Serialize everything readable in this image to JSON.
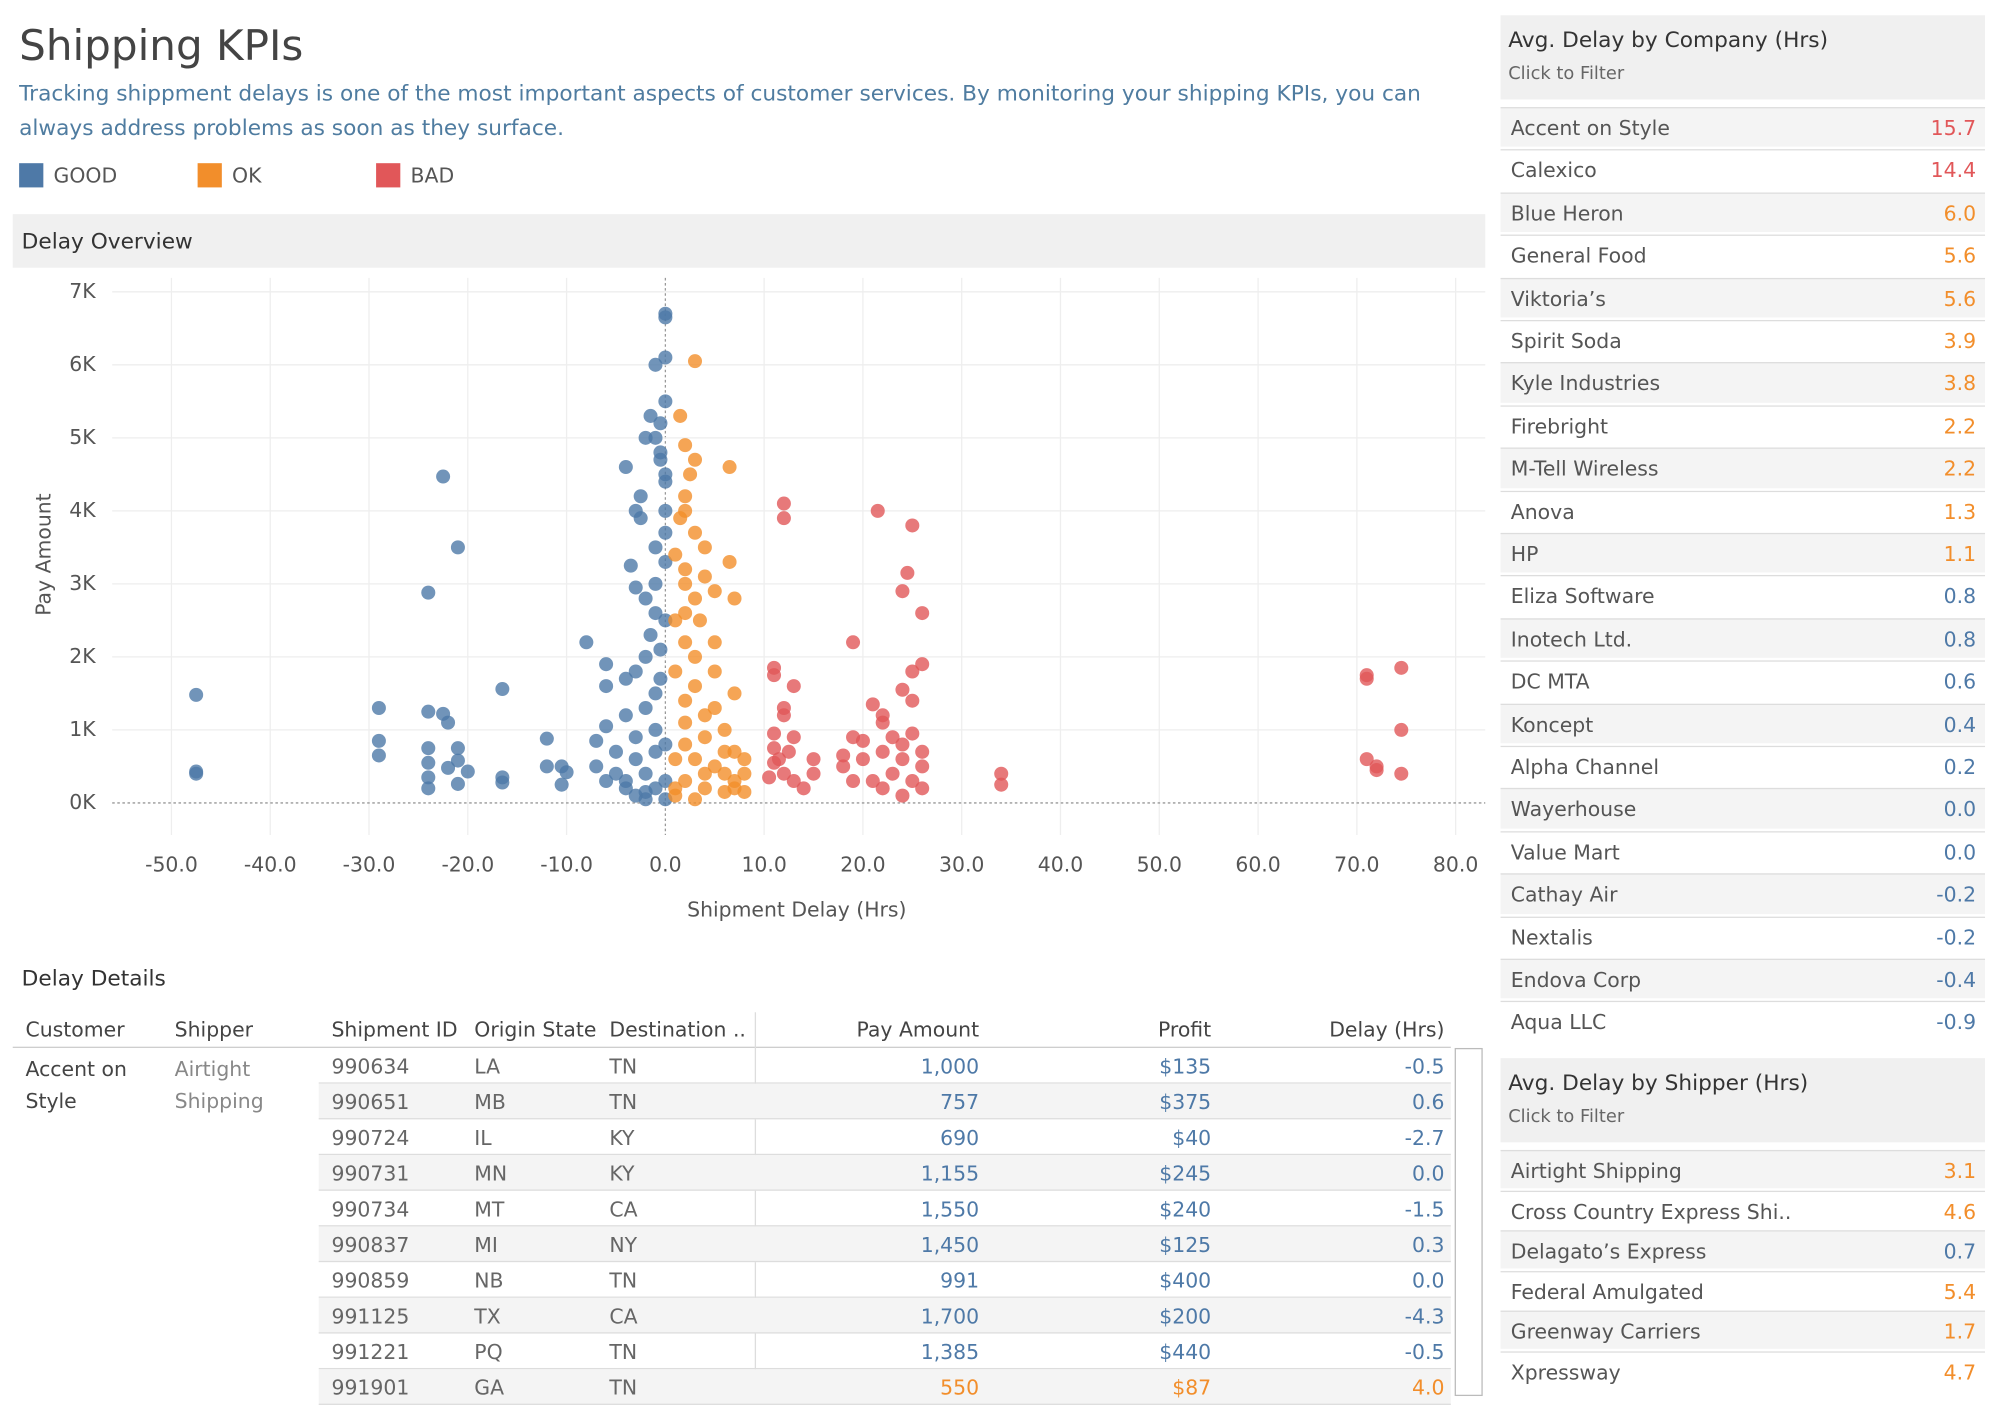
{
  "header": {
    "title": "Shipping KPIs",
    "subtitle": "Tracking shippment delays is one of the most important aspects of customer services. By monitoring your shipping KPIs, you can always address problems as soon as they surface."
  },
  "chart_data": {
    "type": "scatter",
    "title": "Delay Overview",
    "x_label": "Shipment Delay (Hrs)",
    "y_label": "Pay Amount",
    "xlim": [
      -56,
      83
    ],
    "ylim": [
      -440,
      7190
    ],
    "xticks": [
      {
        "value": -50,
        "label": "-50.0"
      },
      {
        "value": -40,
        "label": "-40.0"
      },
      {
        "value": -30,
        "label": "-30.0"
      },
      {
        "value": -20,
        "label": "-20.0"
      },
      {
        "value": -10,
        "label": "-10.0"
      },
      {
        "value": 0,
        "label": "0.0"
      },
      {
        "value": 10,
        "label": "10.0"
      },
      {
        "value": 20,
        "label": "20.0"
      },
      {
        "value": 30,
        "label": "30.0"
      },
      {
        "value": 40,
        "label": "40.0"
      },
      {
        "value": 50,
        "label": "50.0"
      },
      {
        "value": 60,
        "label": "60.0"
      },
      {
        "value": 70,
        "label": "70.0"
      },
      {
        "value": 80,
        "label": "80.0"
      }
    ],
    "yticks": [
      {
        "value": 0,
        "label": "0K"
      },
      {
        "value": 1000,
        "label": "1K"
      },
      {
        "value": 2000,
        "label": "2K"
      },
      {
        "value": 3000,
        "label": "3K"
      },
      {
        "value": 4000,
        "label": "4K"
      },
      {
        "value": 5000,
        "label": "5K"
      },
      {
        "value": 6000,
        "label": "6K"
      },
      {
        "value": 7000,
        "label": "7K"
      }
    ],
    "grid": true,
    "series": [
      {
        "name": "GOOD",
        "color": "#4e79a7",
        "x": [
          -47.5,
          -47.5,
          -47.5,
          -29,
          -29,
          -29,
          -24,
          -22.5,
          -21,
          -24,
          -22.5,
          -22,
          -24,
          -24,
          -24,
          -24,
          -22,
          -21,
          -21,
          -20,
          -21,
          -16.5,
          -16.5,
          -16.5,
          -12,
          -12,
          -10.5,
          -10.5,
          -10,
          -8,
          -7,
          -7,
          -6,
          -6,
          -5,
          -6,
          -4,
          -3.5,
          -3,
          -3,
          -2.5,
          -2.5,
          -2,
          -1.5,
          -1.5,
          -1,
          0,
          0,
          0,
          0,
          -0.5,
          -1,
          -0.5,
          0,
          0,
          0,
          -1,
          -1,
          -2,
          -1,
          -2,
          -0.5,
          -4,
          -3,
          -1,
          -4,
          -2,
          -3,
          -1,
          -5,
          -3,
          -1,
          -4,
          -2,
          -1,
          -3,
          -2,
          0,
          0,
          0,
          -0.5,
          0,
          0,
          -4,
          -6,
          -2,
          0,
          -0.5
        ],
        "values": [
          1480,
          430,
          400,
          1300,
          850,
          650,
          2880,
          4470,
          3500,
          1250,
          1220,
          1100,
          750,
          550,
          350,
          200,
          480,
          750,
          580,
          430,
          260,
          1560,
          350,
          280,
          880,
          500,
          500,
          250,
          420,
          2200,
          850,
          500,
          1600,
          1050,
          400,
          1900,
          4600,
          3250,
          2950,
          4000,
          4200,
          3900,
          5000,
          2300,
          5300,
          6000,
          6700,
          6650,
          6100,
          5500,
          5200,
          5000,
          4700,
          4400,
          4000,
          3700,
          3500,
          3000,
          2800,
          2600,
          2000,
          2100,
          1700,
          1800,
          1500,
          1200,
          1300,
          900,
          1000,
          700,
          600,
          700,
          300,
          400,
          200,
          100,
          50,
          50,
          300,
          800,
          1700,
          2500,
          3300,
          200,
          300,
          150,
          4500,
          4800
        ]
      },
      {
        "name": "OK",
        "color": "#f28e2b",
        "x": [
          3,
          6.5,
          1.5,
          2,
          2.5,
          3,
          2,
          1.5,
          3,
          6.5,
          2,
          4,
          5,
          7,
          2,
          3.5,
          5,
          3,
          5,
          7,
          2,
          4,
          6,
          7,
          2,
          3,
          5,
          7,
          2,
          4,
          1,
          3,
          6,
          1,
          1,
          1,
          2,
          8,
          8,
          6,
          4,
          2,
          5,
          3,
          1,
          1,
          4,
          6,
          7,
          8,
          2,
          3,
          4,
          2
        ],
        "values": [
          6050,
          4600,
          5300,
          4900,
          4500,
          4700,
          4200,
          3900,
          3700,
          3300,
          3000,
          3100,
          2900,
          2800,
          2600,
          2500,
          2200,
          2000,
          1800,
          1500,
          1400,
          1200,
          1000,
          700,
          800,
          600,
          500,
          300,
          300,
          200,
          100,
          50,
          150,
          1800,
          2500,
          3400,
          4000,
          600,
          400,
          700,
          900,
          1100,
          1300,
          1600,
          600,
          200,
          400,
          400,
          200,
          150,
          2200,
          2800,
          3500,
          3200
        ]
      },
      {
        "name": "BAD",
        "color": "#e15759",
        "x": [
          12,
          12,
          21.5,
          25,
          24.5,
          24,
          26,
          19,
          26,
          25,
          11,
          11,
          13,
          12,
          12,
          24,
          25,
          21,
          22,
          22,
          11,
          13,
          11,
          19,
          20,
          23,
          24,
          25,
          26,
          18,
          18,
          20,
          22,
          24,
          26,
          11,
          12,
          13,
          15,
          15,
          14,
          19,
          21,
          22,
          23,
          24,
          25,
          26,
          34,
          34,
          71,
          71,
          74.5,
          74.5,
          71,
          72,
          72,
          74.5,
          11.5,
          12.5,
          10.5
        ],
        "values": [
          4100,
          3900,
          4000,
          3800,
          3150,
          2900,
          2600,
          2200,
          1900,
          1800,
          1850,
          1750,
          1600,
          1300,
          1200,
          1550,
          1400,
          1350,
          1200,
          1100,
          950,
          900,
          750,
          900,
          850,
          900,
          800,
          950,
          700,
          650,
          500,
          600,
          700,
          600,
          500,
          550,
          400,
          300,
          600,
          400,
          200,
          300,
          300,
          200,
          400,
          100,
          300,
          200,
          400,
          250,
          1750,
          1700,
          1850,
          1000,
          600,
          500,
          450,
          400,
          600,
          700,
          350
        ]
      }
    ]
  },
  "company_panel": {
    "title": "Avg. Delay by Company (Hrs)",
    "hint": "Click to Filter",
    "rows": [
      [
        "Accent on Style",
        "15.7"
      ],
      [
        "Calexico",
        "14.4"
      ],
      [
        "Blue Heron",
        "6.0"
      ],
      [
        "General Food",
        "5.6"
      ],
      [
        "Viktoria’s",
        "5.6"
      ],
      [
        "Spirit Soda",
        "3.9"
      ],
      [
        "Kyle Industries",
        "3.8"
      ],
      [
        "Firebright",
        "2.2"
      ],
      [
        "M-Tell Wireless",
        "2.2"
      ],
      [
        "Anova",
        "1.3"
      ],
      [
        "HP",
        "1.1"
      ],
      [
        "Eliza Software",
        "0.8"
      ],
      [
        "Inotech Ltd.",
        "0.8"
      ],
      [
        "DC MTA",
        "0.6"
      ],
      [
        "Koncept",
        "0.4"
      ],
      [
        "Alpha Channel",
        "0.2"
      ],
      [
        "Wayerhouse",
        "0.0"
      ],
      [
        "Value Mart",
        "0.0"
      ],
      [
        "Cathay Air",
        "-0.2"
      ],
      [
        "Nextalis",
        "-0.2"
      ],
      [
        "Endova Corp",
        "-0.4"
      ],
      [
        "Aqua LLC",
        "-0.9"
      ]
    ]
  },
  "shipper_panel": {
    "title": "Avg. Delay by Shipper (Hrs)",
    "hint": "Click to Filter",
    "rows": [
      [
        "Airtight Shipping",
        "3.1"
      ],
      [
        "Cross Country Express Shi..",
        "4.6"
      ],
      [
        "Delagato’s Express",
        "0.7"
      ],
      [
        "Federal Amulgated",
        "5.4"
      ],
      [
        "Greenway Carriers",
        "1.7"
      ],
      [
        "Xpressway",
        "4.7"
      ]
    ]
  },
  "details": {
    "title": "Delay Details",
    "columns": [
      "Customer",
      "Shipper",
      "Shipment ID",
      "Origin State",
      "Destination ..",
      "Pay Amount",
      "Profit",
      "Delay (Hrs)"
    ],
    "customer": "Accent on Style",
    "shipper": "Airtight Shipping",
    "rows": [
      [
        "990634",
        "LA",
        "TN",
        "1,000",
        "$135",
        "-0.5"
      ],
      [
        "990651",
        "MB",
        "TN",
        "757",
        "$375",
        "0.6"
      ],
      [
        "990724",
        "IL",
        "KY",
        "690",
        "$40",
        "-2.7"
      ],
      [
        "990731",
        "MN",
        "KY",
        "1,155",
        "$245",
        "0.0"
      ],
      [
        "990734",
        "MT",
        "CA",
        "1,550",
        "$240",
        "-1.5"
      ],
      [
        "990837",
        "MI",
        "NY",
        "1,450",
        "$125",
        "0.3"
      ],
      [
        "990859",
        "NB",
        "TN",
        "991",
        "$400",
        "0.0"
      ],
      [
        "991125",
        "TX",
        "CA",
        "1,700",
        "$200",
        "-4.3"
      ],
      [
        "991221",
        "PQ",
        "TN",
        "1,385",
        "$440",
        "-0.5"
      ],
      [
        "991901",
        "GA",
        "TN",
        "550",
        "$87",
        "4.0"
      ]
    ]
  }
}
